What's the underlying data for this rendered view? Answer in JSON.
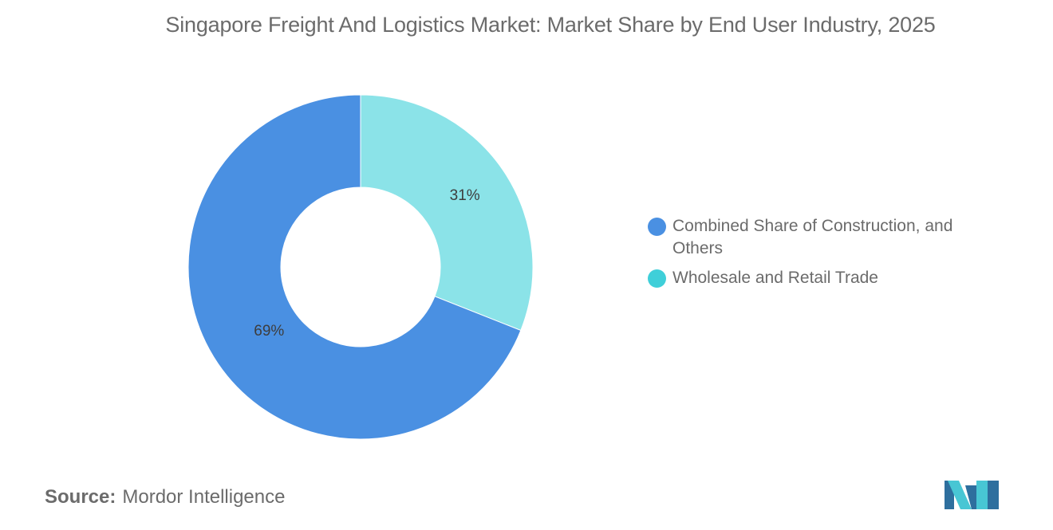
{
  "chart_data": {
    "type": "pie",
    "variant": "donut",
    "title": "Singapore Freight And Logistics Market: Market Share by End User Industry, 2025",
    "unit": "%",
    "slices": [
      {
        "label": "Combined Share of Construction, and Others",
        "value": 69,
        "value_label": "69%",
        "color": "#4a90e2"
      },
      {
        "label": "Wholesale and Retail Trade",
        "value": 31,
        "value_label": "31%",
        "color": "#8be3e8"
      }
    ],
    "legend": {
      "placement": "right",
      "items": [
        {
          "label": "Combined Share of Construction, and Others",
          "color": "#4a90e2"
        },
        {
          "label": "Wholesale and Retail Trade",
          "color": "#3fcfd9"
        }
      ]
    }
  },
  "source": {
    "prefix": "Source:",
    "text": "Mordor Intelligence"
  },
  "colors": {
    "text": "#6b6b6b",
    "label": "#3d3d3d",
    "logo_dark": "#2e6f9e",
    "logo_light": "#48c6d4"
  }
}
